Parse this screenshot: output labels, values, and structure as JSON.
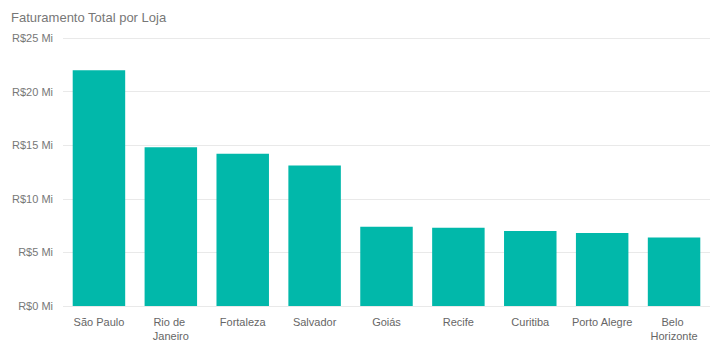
{
  "chart_data": {
    "type": "bar",
    "title": "Faturamento Total por Loja",
    "categories": [
      "São Paulo",
      "Rio de Janeiro",
      "Fortaleza",
      "Salvador",
      "Goiás",
      "Recife",
      "Curitiba",
      "Porto Alegre",
      "Belo Horizonte"
    ],
    "values": [
      22.0,
      14.8,
      14.2,
      13.1,
      7.4,
      7.3,
      7.0,
      6.8,
      6.4
    ],
    "color": "#01b8aa",
    "ylim": [
      0,
      25
    ],
    "yticks": [
      {
        "value": 0,
        "label": "R$0 Mi"
      },
      {
        "value": 5,
        "label": "R$5 Mi"
      },
      {
        "value": 10,
        "label": "R$10 Mi"
      },
      {
        "value": 15,
        "label": "R$15 Mi"
      },
      {
        "value": 20,
        "label": "R$20 Mi"
      },
      {
        "value": 25,
        "label": "R$25 Mi"
      }
    ],
    "grid": true
  }
}
